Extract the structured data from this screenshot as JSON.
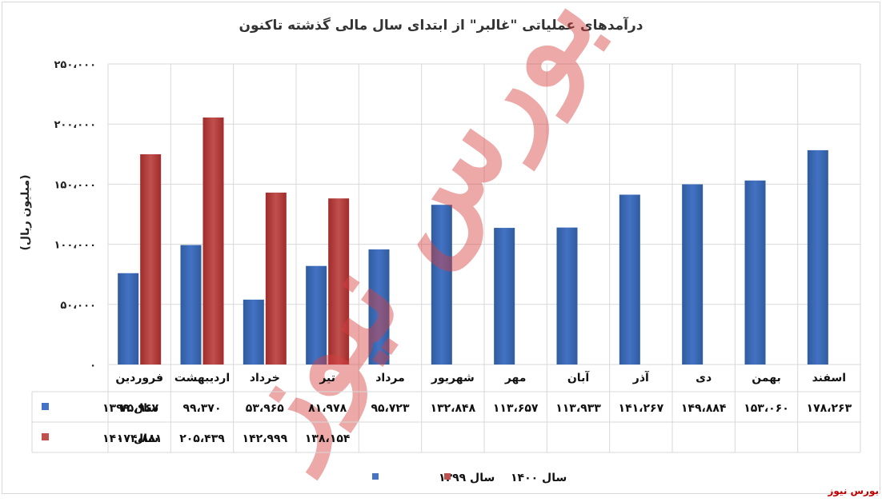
{
  "title": "درآمدهای عملیاتی \"غالبر\" از ابتدای سال مالی گذشته تاکنون",
  "source": "بورس نیوز",
  "watermark": "بورس نیوز",
  "colors": {
    "series_1399": "#4472c4",
    "series_1400": "#c0504d"
  },
  "chart_data": {
    "type": "bar",
    "ylabel": "(میلیون ریال)",
    "ylim": [
      0,
      250000
    ],
    "y_ticks": [
      "۰",
      "۵۰،۰۰۰",
      "۱۰۰،۰۰۰",
      "۱۵۰،۰۰۰",
      "۲۰۰،۰۰۰",
      "۲۵۰،۰۰۰"
    ],
    "grid": true,
    "legend_position": "bottom",
    "categories": [
      "فروردین",
      "اردیبهشت",
      "خرداد",
      "تیر",
      "مرداد",
      "شهریور",
      "مهر",
      "آبان",
      "آذر",
      "دی",
      "بهمن",
      "اسفند"
    ],
    "series": [
      {
        "name": "سال ۱۳۹۹",
        "color": "#4472c4",
        "values": [
          75967,
          99370,
          53965,
          81978,
          95723,
          132848,
          113657,
          113933,
          141267,
          149884,
          153060,
          178263
        ],
        "labels": [
          "۷۵،۹۶۷",
          "۹۹،۳۷۰",
          "۵۳،۹۶۵",
          "۸۱،۹۷۸",
          "۹۵،۷۲۳",
          "۱۳۲،۸۴۸",
          "۱۱۳،۶۵۷",
          "۱۱۳،۹۳۳",
          "۱۴۱،۲۶۷",
          "۱۴۹،۸۸۴",
          "۱۵۳،۰۶۰",
          "۱۷۸،۲۶۳"
        ]
      },
      {
        "name": "سال ۱۴۰۰",
        "color": "#c0504d",
        "values": [
          174881,
          205439,
          142999,
          138154,
          null,
          null,
          null,
          null,
          null,
          null,
          null,
          null
        ],
        "labels": [
          "۱۷۴،۸۸۱",
          "۲۰۵،۴۳۹",
          "۱۴۲،۹۹۹",
          "۱۳۸،۱۵۴",
          "",
          "",
          "",
          "",
          "",
          "",
          "",
          ""
        ]
      }
    ]
  }
}
